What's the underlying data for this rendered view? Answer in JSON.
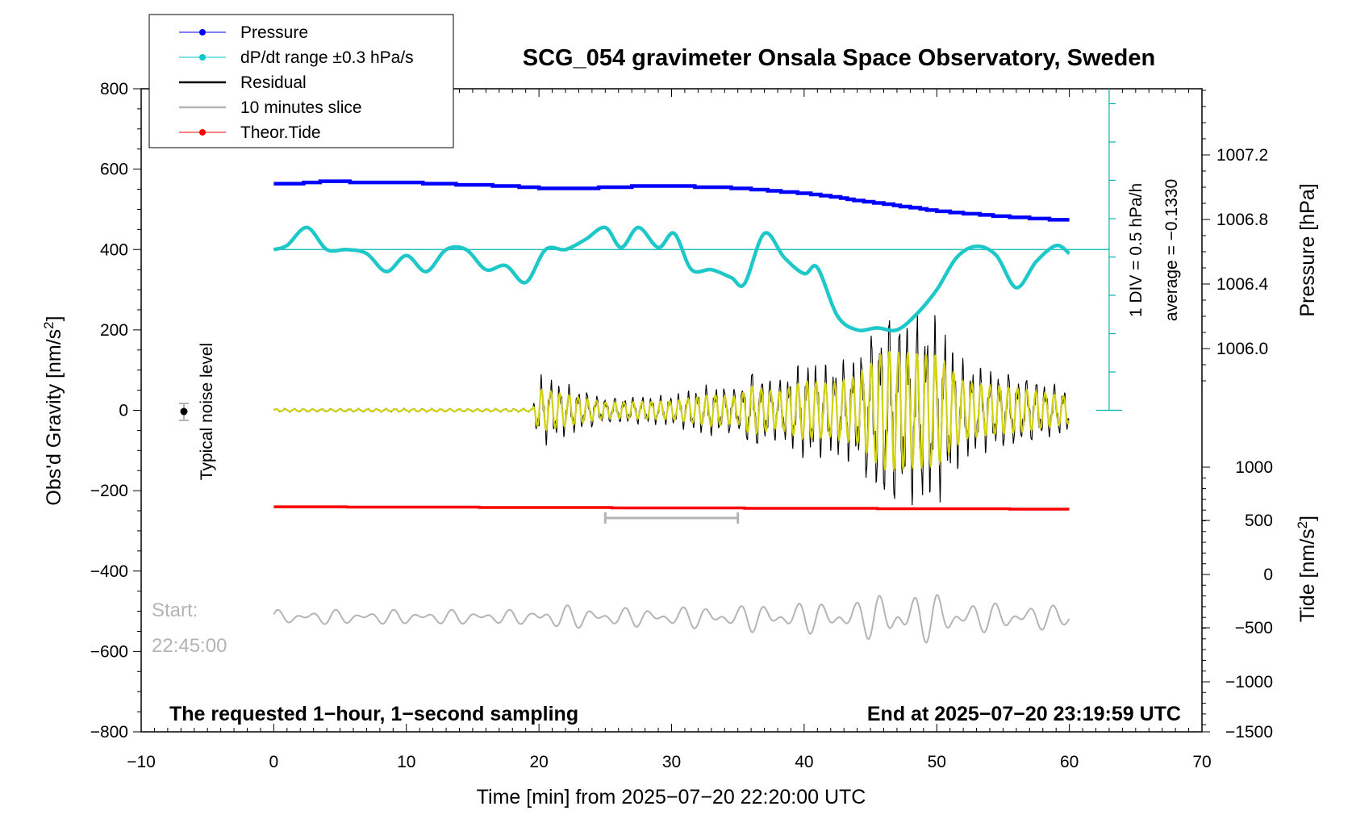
{
  "chart_data": {
    "type": "line",
    "title": "SCG_054 gravimeter Onsala Space Observatory, Sweden",
    "xlabel": "Time [min] from 2025−07−20 22:20:00 UTC",
    "xlim": [
      -10,
      70
    ],
    "x_ticks": [
      "−10",
      "0",
      "10",
      "20",
      "30",
      "40",
      "50",
      "60",
      "70"
    ],
    "y_left": {
      "label_main": "Obs'd Gravity [nm/s",
      "label_sup": "2",
      "label_end": "]",
      "ylim": [
        -800,
        800
      ],
      "ticks": [
        "800",
        "600",
        "400",
        "200",
        "0",
        "−200",
        "−400",
        "−600",
        "−800"
      ]
    },
    "y_right_pressure": {
      "label": "Pressure [hPa]",
      "ticks": [
        "1007.2",
        "1006.8",
        "1006.4",
        "1006.0"
      ]
    },
    "y_right_tide": {
      "label_main": "Tide [nm/s",
      "label_sup": "2",
      "label_end": "]",
      "ticks": [
        "1000",
        "500",
        "0",
        "−500",
        "−1000",
        "−1500"
      ]
    },
    "legend": {
      "position": "top-left",
      "entries": [
        {
          "label": "Pressure",
          "color": "#0000ff",
          "marker": "dot"
        },
        {
          "label": "dP/dt range ±0.3 hPa/s",
          "color": "#00c8c8",
          "marker": "dot"
        },
        {
          "label": "Residual",
          "color": "#000000",
          "marker": "line"
        },
        {
          "label": "10 minutes slice",
          "color": "#b4b4b4",
          "marker": "line"
        },
        {
          "label": "Theor.Tide",
          "color": "#ff0000",
          "marker": "dot"
        }
      ]
    },
    "annotations": {
      "rate_scale": "1 DIV = 0.5 hPa/h",
      "rate_average": "average = −0.1330",
      "noise_label": "Typical noise level",
      "start_label": "Start:",
      "start_time": "22:45:00",
      "footer_left": "The requested 1−hour, 1−second sampling",
      "footer_right": "End at 2025−07−20 23:19:59 UTC"
    },
    "slice_bracket_minutes": [
      25,
      35
    ],
    "series": [
      {
        "name": "Pressure",
        "color": "#0000ff",
        "x": [
          0,
          2,
          4,
          6,
          8,
          10,
          12,
          14,
          16,
          18,
          20,
          22,
          24,
          26,
          28,
          30,
          32,
          34,
          36,
          38,
          40,
          42,
          44,
          46,
          48,
          50,
          52,
          54,
          56,
          58,
          60
        ],
        "y": [
          565,
          565,
          570,
          568,
          567,
          566,
          565,
          562,
          560,
          557,
          553,
          552,
          553,
          555,
          558,
          558,
          556,
          554,
          550,
          545,
          540,
          532,
          522,
          514,
          505,
          496,
          490,
          485,
          480,
          476,
          473
        ]
      },
      {
        "name": "dP/dt range ±0.3 hPa/s",
        "color": "#00c8c8",
        "x": [
          0,
          1,
          2.5,
          4,
          5.5,
          7,
          8.5,
          10,
          11.5,
          13,
          14.5,
          16,
          17.5,
          19,
          20.5,
          22,
          23.5,
          25,
          26.2,
          27.5,
          29,
          30.2,
          31.5,
          33,
          34.5,
          35.5,
          37,
          38.5,
          40,
          41,
          42.5,
          44,
          45.5,
          47,
          48.5,
          50,
          51.5,
          53,
          54.5,
          56,
          57.5,
          59,
          60
        ],
        "y": [
          400,
          410,
          455,
          400,
          400,
          390,
          345,
          385,
          345,
          400,
          400,
          350,
          360,
          318,
          400,
          400,
          425,
          455,
          405,
          455,
          405,
          440,
          350,
          350,
          330,
          315,
          440,
          380,
          340,
          355,
          235,
          200,
          205,
          200,
          240,
          300,
          380,
          408,
          385,
          305,
          370,
          410,
          390
        ]
      },
      {
        "name": "Residual",
        "color": "#000000",
        "x": [
          0,
          19.5,
          20,
          25,
          30,
          33,
          35,
          36,
          38,
          40,
          42,
          44,
          46,
          48,
          50,
          52,
          54,
          56,
          58,
          60
        ],
        "amplitude": [
          5,
          5,
          95,
          35,
          40,
          70,
          60,
          110,
          80,
          130,
          120,
          150,
          270,
          260,
          250,
          130,
          110,
          100,
          80,
          60
        ]
      },
      {
        "name": "Theor.Tide",
        "color": "#ff0000",
        "x": [
          0,
          60
        ],
        "y": [
          -240,
          -246
        ]
      }
    ]
  }
}
